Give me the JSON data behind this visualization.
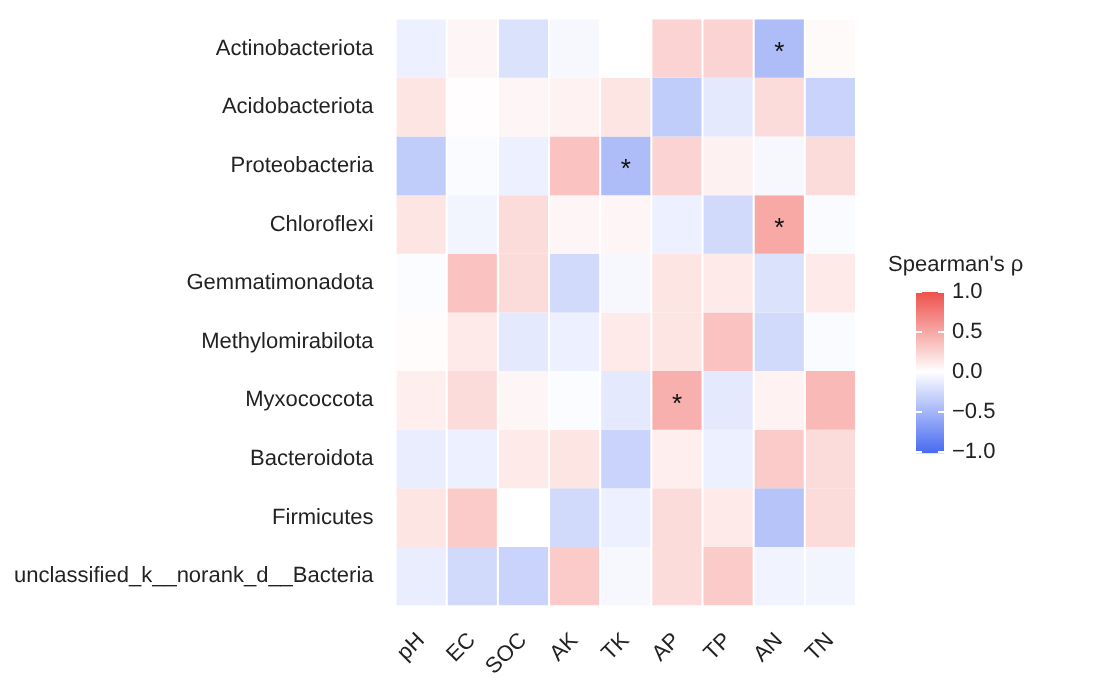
{
  "chart_data": {
    "type": "heatmap",
    "clabel": "Spearman's ρ",
    "categories": [
      "pH",
      "EC",
      "SOC",
      "AK",
      "TK",
      "AP",
      "TP",
      "AN",
      "TN"
    ],
    "y_categories": [
      "Actinobacteriota",
      "Acidobacteriota",
      "Proteobacteria",
      "Chloroflexi",
      "Gemmatimonadota",
      "Methylomirabilota",
      "Myxococcota",
      "Bacteroidota",
      "Firmicutes",
      "unclassified_k__norank_d__Bacteria"
    ],
    "cells": [
      [
        -0.1,
        0.05,
        -0.2,
        -0.05,
        0,
        0.25,
        0.25,
        -0.45,
        0.03
      ],
      [
        0.15,
        0.01,
        0.05,
        0.07,
        0.15,
        -0.35,
        -0.15,
        0.2,
        -0.3
      ],
      [
        -0.35,
        -0.03,
        -0.1,
        0.35,
        -0.45,
        0.25,
        0.08,
        -0.05,
        0.2
      ],
      [
        0.15,
        -0.07,
        0.2,
        0.05,
        0.05,
        -0.1,
        -0.25,
        0.5,
        -0.03
      ],
      [
        -0.02,
        0.35,
        0.2,
        -0.25,
        -0.05,
        0.15,
        0.12,
        -0.2,
        0.12
      ],
      [
        0.02,
        0.12,
        -0.15,
        -0.1,
        0.12,
        0.15,
        0.35,
        -0.25,
        -0.03
      ],
      [
        0.1,
        0.2,
        0.05,
        -0.02,
        -0.15,
        0.45,
        -0.15,
        0.07,
        0.4
      ],
      [
        -0.12,
        -0.1,
        0.12,
        0.15,
        -0.3,
        0.1,
        -0.1,
        0.3,
        0.2
      ],
      [
        0.15,
        0.3,
        0,
        -0.25,
        -0.1,
        0.2,
        0.12,
        -0.4,
        0.2
      ],
      [
        -0.12,
        -0.25,
        -0.3,
        0.3,
        -0.05,
        0.2,
        0.3,
        -0.08,
        -0.07
      ]
    ],
    "colors": [
      "#4a6cf0",
      "#ffffff",
      "#f0504b"
    ],
    "clim": [
      -1,
      1
    ],
    "cticks": [
      {
        "value": -1,
        "label": "−1.0"
      },
      {
        "value": -0.5,
        "label": "−0.5"
      },
      {
        "value": 0,
        "label": "0.0"
      },
      {
        "value": 0.5,
        "label": "0.5"
      },
      {
        "value": 1,
        "label": "1.0"
      }
    ],
    "cell_labels": [
      [
        null,
        null,
        null,
        null,
        null,
        null,
        null,
        "*",
        null
      ],
      [
        null,
        null,
        null,
        null,
        null,
        null,
        null,
        null,
        null
      ],
      [
        null,
        null,
        null,
        null,
        "*",
        null,
        null,
        null,
        null
      ],
      [
        null,
        null,
        null,
        null,
        null,
        null,
        null,
        "*",
        null
      ],
      [
        null,
        null,
        null,
        null,
        null,
        null,
        null,
        null,
        null
      ],
      [
        null,
        null,
        null,
        null,
        null,
        null,
        null,
        null,
        null
      ],
      [
        null,
        null,
        null,
        null,
        null,
        "*",
        null,
        null,
        null
      ],
      [
        null,
        null,
        null,
        null,
        null,
        null,
        null,
        null,
        null
      ],
      [
        null,
        null,
        null,
        null,
        null,
        null,
        null,
        null,
        null
      ],
      [
        null,
        null,
        null,
        null,
        null,
        null,
        null,
        null,
        null
      ]
    ]
  }
}
